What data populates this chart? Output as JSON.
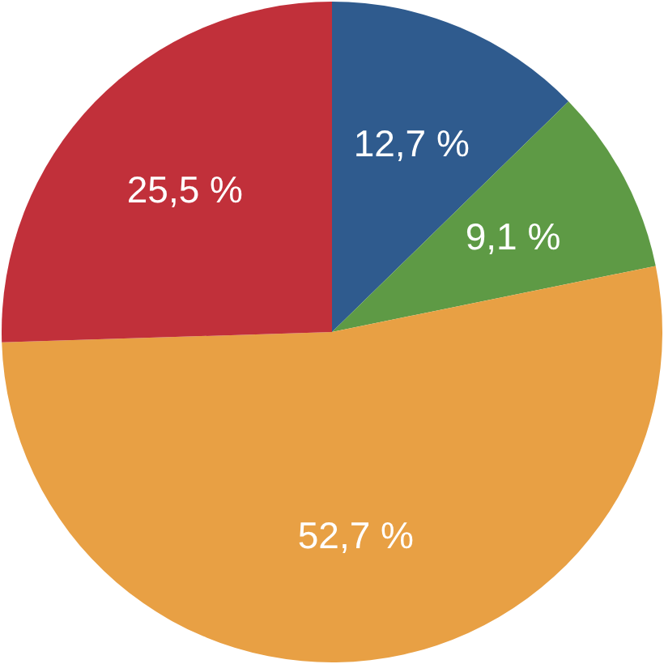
{
  "chart_data": {
    "type": "pie",
    "categories": [
      null,
      null,
      null,
      null
    ],
    "values": [
      12.7,
      9.1,
      52.7,
      25.5
    ],
    "colors": [
      "#2f5b8e",
      "#5e9a45",
      "#e8a044",
      "#c1303a"
    ],
    "value_labels": [
      "12,7 %",
      "9,1 %",
      "52,7 %",
      "25,5 %"
    ]
  }
}
